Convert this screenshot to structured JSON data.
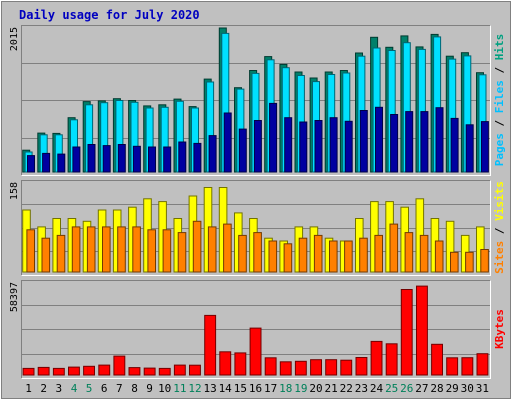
{
  "chart_data": {
    "type": "bar",
    "title": "Daily usage for July 2020",
    "categories": [
      "1",
      "2",
      "3",
      "4",
      "5",
      "6",
      "7",
      "8",
      "9",
      "10",
      "11",
      "12",
      "13",
      "14",
      "15",
      "16",
      "17",
      "18",
      "19",
      "20",
      "21",
      "22",
      "23",
      "24",
      "25",
      "26",
      "27",
      "28",
      "29",
      "30",
      "31"
    ],
    "weekend_days": [
      "4",
      "5",
      "11",
      "12",
      "18",
      "19",
      "25",
      "26"
    ],
    "panels": [
      {
        "name": "hits-files-pages",
        "max_label": "2015",
        "ylim": [
          0,
          2015
        ],
        "label_parts": [
          {
            "text": "Pages",
            "color": "#00c0ff"
          },
          {
            "text": " / ",
            "color": "#000000"
          },
          {
            "text": "Files",
            "color": "#00c0ff"
          },
          {
            "text": " / ",
            "color": "#000000"
          },
          {
            "text": "Hits",
            "color": "#00a080"
          }
        ],
        "series": [
          {
            "name": "Hits",
            "color": "#00806a",
            "values": [
              305,
              545,
              540,
              760,
              985,
              995,
              1025,
              1000,
              925,
              940,
              1020,
              915,
              1300,
              2015,
              1180,
              1420,
              1615,
              1505,
              1400,
              1315,
              1400,
              1420,
              1665,
              1885,
              1745,
              1905,
              1750,
              1925,
              1620,
              1670,
              1390
            ]
          },
          {
            "name": "Files",
            "color": "#00e0ff",
            "values": [
              280,
              520,
              520,
              730,
              940,
              970,
              1000,
              975,
              895,
              905,
              990,
              895,
              1260,
              1940,
              1160,
              1380,
              1570,
              1460,
              1350,
              1265,
              1365,
              1385,
              1620,
              1735,
              1700,
              1810,
              1715,
              1890,
              1580,
              1625,
              1360
            ]
          },
          {
            "name": "Pages",
            "color": "#0000a0",
            "values": [
              230,
              260,
              250,
              350,
              385,
              370,
              385,
              360,
              350,
              350,
              420,
              400,
              510,
              825,
              600,
              720,
              960,
              760,
              700,
              720,
              760,
              710,
              860,
              905,
              805,
              845,
              845,
              900,
              750,
              660,
              705
            ]
          }
        ]
      },
      {
        "name": "visits-sites",
        "max_label": "158",
        "ylim": [
          0,
          158
        ],
        "label_parts": [
          {
            "text": "Sites",
            "color": "#ff8000"
          },
          {
            "text": " / ",
            "color": "#000000"
          },
          {
            "text": "Visits",
            "color": "#ffff00"
          }
        ],
        "series": [
          {
            "name": "Visits",
            "color": "#ffff00",
            "values": [
              110,
              80,
              95,
              95,
              90,
              110,
              110,
              115,
              130,
              125,
              95,
              135,
              150,
              150,
              105,
              95,
              60,
              55,
              80,
              80,
              60,
              55,
              95,
              125,
              125,
              115,
              130,
              95,
              90,
              65,
              80
            ]
          },
          {
            "name": "Sites",
            "color": "#ff8000",
            "values": [
              75,
              60,
              65,
              80,
              80,
              80,
              80,
              80,
              75,
              75,
              70,
              90,
              80,
              85,
              65,
              70,
              55,
              50,
              60,
              65,
              55,
              55,
              60,
              65,
              85,
              70,
              65,
              55,
              35,
              35,
              40
            ]
          }
        ]
      },
      {
        "name": "kbytes",
        "max_label": "58397",
        "ylim": [
          0,
          58397
        ],
        "label_parts": [
          {
            "text": "KBytes",
            "color": "#ff0000"
          }
        ],
        "series": [
          {
            "name": "KBytes",
            "color": "#ff0000",
            "values": [
              4200,
              4800,
              4200,
              5000,
              5500,
              6300,
              12000,
              4700,
              4400,
              4200,
              6300,
              6200,
              37800,
              14700,
              14000,
              29800,
              10900,
              8400,
              8700,
              9700,
              9700,
              9400,
              11100,
              21300,
              19800,
              54300,
              56400,
              19500,
              10900,
              11000,
              13500
            ]
          }
        ]
      }
    ]
  }
}
